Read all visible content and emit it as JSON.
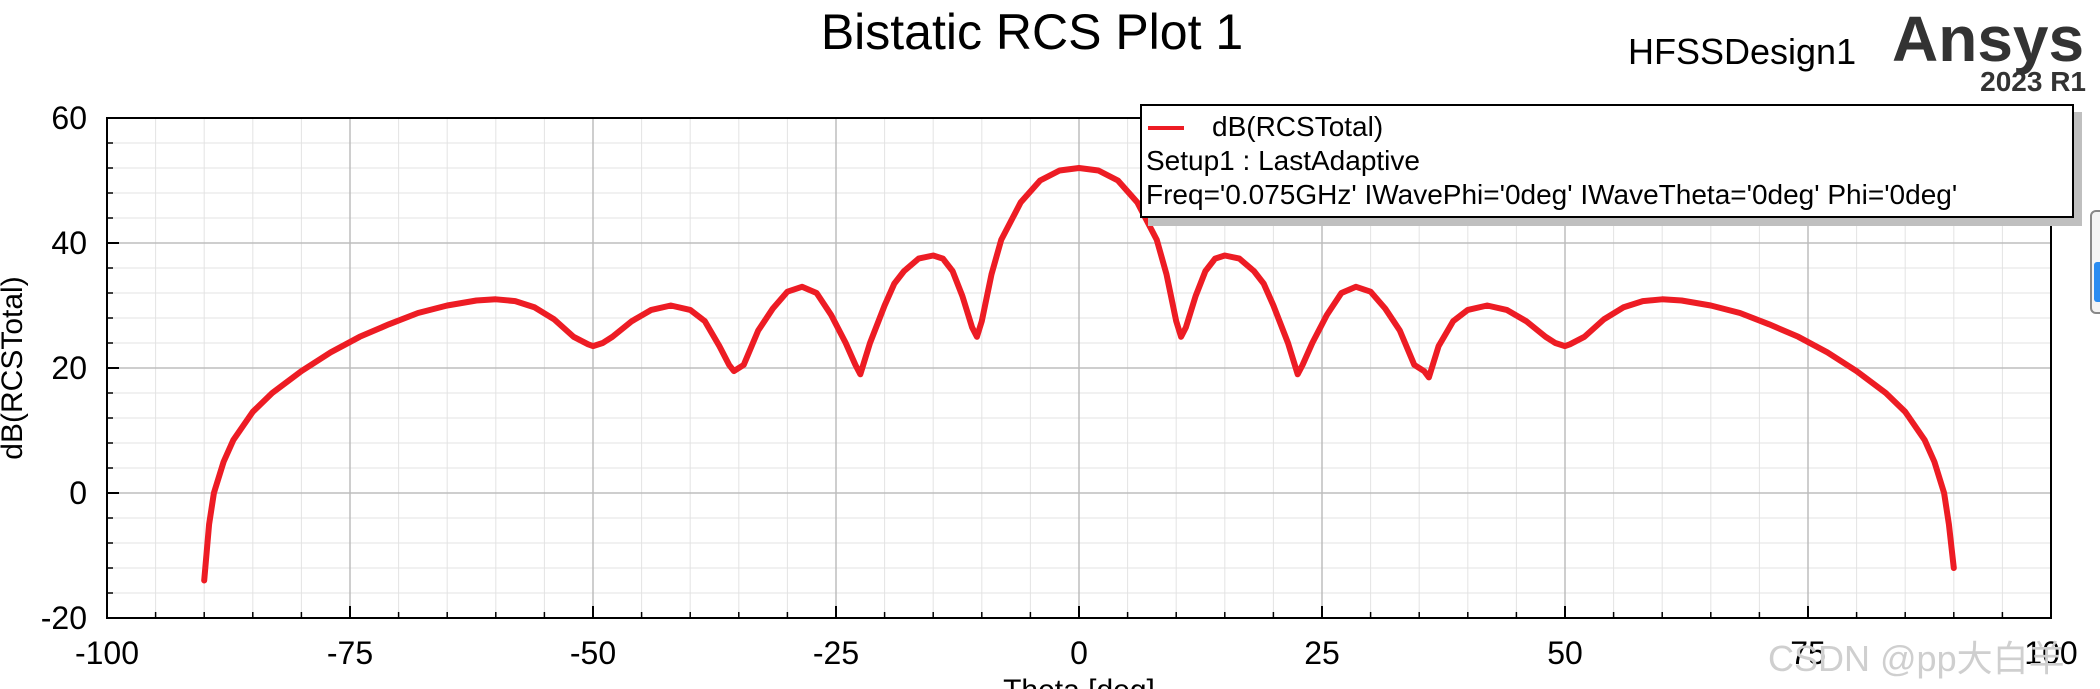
{
  "header": {
    "design_name": "HFSSDesign1",
    "brand": "Ansys",
    "version": "2023 R1"
  },
  "legend": {
    "entries": [
      "dB(RCSTotal)"
    ],
    "lines": [
      "Setup1 : LastAdaptive",
      "Freq='0.075GHz' IWavePhi='0deg' IWaveTheta='0deg' Phi='0deg'"
    ]
  },
  "watermark": "CSDN @pp大白羊",
  "colors": {
    "series": "#ed1c24",
    "grid_major": "#bdbdbd",
    "grid_minor": "#e3e3e3"
  },
  "chart_data": {
    "type": "line",
    "title": "Bistatic RCS Plot 1",
    "xlabel": "Theta [deg]",
    "ylabel": "dB(RCSTotal)",
    "xlim": [
      -100,
      100
    ],
    "ylim": [
      -20,
      60
    ],
    "xticks": [
      -100,
      -75,
      -50,
      -25,
      0,
      25,
      50,
      75,
      100
    ],
    "yticks": [
      -20,
      0,
      20,
      40,
      60
    ],
    "grid": true,
    "legend_position": "top-right",
    "series": [
      {
        "name": "dB(RCSTotal)",
        "color": "#ed1c24",
        "x": [
          -90,
          -89.5,
          -89,
          -88,
          -87,
          -85,
          -83,
          -80,
          -77,
          -74,
          -71,
          -68,
          -65,
          -62,
          -60,
          -58,
          -56,
          -54,
          -52,
          -50.5,
          -50,
          -49,
          -48,
          -46,
          -44,
          -42,
          -40,
          -38.5,
          -37,
          -36,
          -35.5,
          -34.5,
          -33,
          -31.5,
          -30,
          -28.5,
          -27,
          -25.5,
          -24,
          -23,
          -22.5,
          -21.5,
          -20,
          -19,
          -18,
          -16.5,
          -15,
          -14,
          -13,
          -12,
          -11,
          -10.5,
          -10,
          -9,
          -8,
          -6,
          -4,
          -2,
          0,
          2,
          4,
          6,
          8,
          9,
          10,
          10.5,
          11,
          12,
          13,
          14,
          15,
          16.5,
          18,
          19,
          20,
          21.5,
          22.5,
          23,
          24,
          25.5,
          27,
          28.5,
          30,
          31.5,
          33,
          34.5,
          35.5,
          36,
          37,
          38.5,
          40,
          42,
          44,
          46,
          48,
          49,
          50,
          50.5,
          52,
          54,
          56,
          58,
          60,
          62,
          65,
          68,
          71,
          74,
          77,
          80,
          83,
          85,
          87,
          88,
          89,
          89.5,
          90
        ],
        "values": [
          -14,
          -5,
          0,
          5,
          8.5,
          13,
          16,
          19.5,
          22.5,
          25,
          27,
          28.8,
          30,
          30.8,
          31,
          30.7,
          29.7,
          27.8,
          25,
          23.8,
          23.5,
          24,
          25,
          27.5,
          29.3,
          30,
          29.3,
          27.5,
          23.5,
          20.5,
          19.5,
          20.5,
          26,
          29.5,
          32.2,
          33,
          32,
          28.5,
          24,
          20.5,
          19,
          24,
          30,
          33.5,
          35.5,
          37.5,
          38,
          37.5,
          35.5,
          31.5,
          26.5,
          25,
          27.5,
          35,
          40.5,
          46.5,
          50,
          51.6,
          52,
          51.6,
          50,
          46.5,
          40.5,
          35,
          27.5,
          25,
          26.5,
          31.5,
          35.5,
          37.5,
          38,
          37.5,
          35.5,
          33.5,
          30,
          24,
          19,
          20.5,
          24,
          28.5,
          32,
          33,
          32.2,
          29.5,
          26,
          20.5,
          19.5,
          18.5,
          23.5,
          27.5,
          29.3,
          30,
          29.3,
          27.5,
          25,
          24,
          23.5,
          23.8,
          25,
          27.8,
          29.7,
          30.7,
          31,
          30.8,
          30,
          28.8,
          27,
          25,
          22.5,
          19.5,
          16,
          13,
          8.5,
          5,
          0,
          -5,
          -12
        ]
      }
    ]
  }
}
